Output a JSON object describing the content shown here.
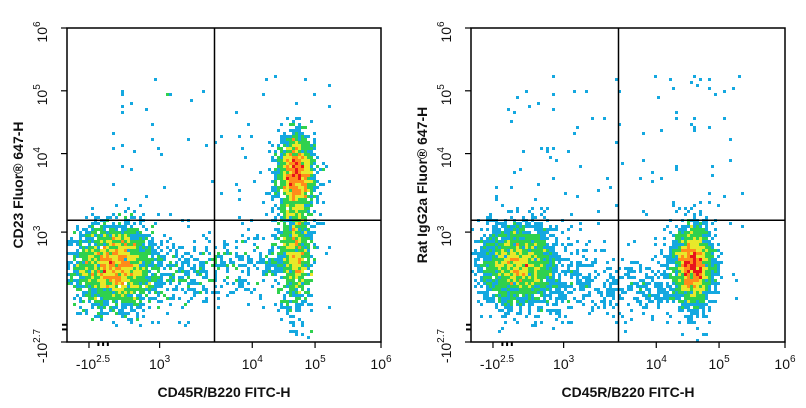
{
  "chart_data": [
    {
      "type": "scatter",
      "subtype": "flow-cytometry-density-dot-plot",
      "xlabel": "CD45R/B220 FITC-H",
      "ylabel": "CD23 Fluor® 647-H",
      "x_axis": {
        "scale": "biexponential",
        "ticks": [
          {
            "base": "-10",
            "exp": "2.5"
          },
          {
            "base": "10",
            "exp": "3"
          },
          {
            "base": "10",
            "exp": "4"
          },
          {
            "base": "10",
            "exp": "5"
          },
          {
            "base": "10",
            "exp": "6"
          }
        ]
      },
      "y_axis": {
        "scale": "biexponential",
        "ticks": [
          {
            "base": "-10",
            "exp": "2.7"
          },
          {
            "base": "10",
            "exp": "3"
          },
          {
            "base": "10",
            "exp": "4"
          },
          {
            "base": "10",
            "exp": "5"
          },
          {
            "base": "10",
            "exp": "6"
          }
        ]
      },
      "gate": {
        "x_threshold": 5000,
        "y_threshold": 1500
      },
      "populations": [
        {
          "name": "CD45R/B220- CD23- cluster",
          "x_center": 160,
          "y_center": 550,
          "relative_density": 1.0
        },
        {
          "name": "CD45R/B220+ CD23+ cluster",
          "x_center": 55000,
          "y_center": 7000,
          "relative_density": 0.9
        },
        {
          "name": "CD45R/B220+ CD23 low tail",
          "x_center": 55000,
          "y_center": 700,
          "relative_density": 0.5
        }
      ],
      "density_colors": [
        "#1b1bd6",
        "#14a8e0",
        "#2fd14e",
        "#e8e82a",
        "#ff8c1a",
        "#e8141c"
      ]
    },
    {
      "type": "scatter",
      "subtype": "flow-cytometry-density-dot-plot",
      "xlabel": "CD45R/B220 FITC-H",
      "ylabel": "Rat IgG2a Fluor® 647-H",
      "x_axis": {
        "scale": "biexponential",
        "ticks": [
          {
            "base": "-10",
            "exp": "2.5"
          },
          {
            "base": "10",
            "exp": "3"
          },
          {
            "base": "10",
            "exp": "4"
          },
          {
            "base": "10",
            "exp": "5"
          },
          {
            "base": "10",
            "exp": "6"
          }
        ]
      },
      "y_axis": {
        "scale": "biexponential",
        "ticks": [
          {
            "base": "-10",
            "exp": "2.7"
          },
          {
            "base": "10",
            "exp": "3"
          },
          {
            "base": "10",
            "exp": "4"
          },
          {
            "base": "10",
            "exp": "5"
          },
          {
            "base": "10",
            "exp": "6"
          }
        ]
      },
      "gate": {
        "x_threshold": 5000,
        "y_threshold": 1500
      },
      "populations": [
        {
          "name": "CD45R/B220- isotype cluster",
          "x_center": 160,
          "y_center": 550,
          "relative_density": 1.0
        },
        {
          "name": "CD45R/B220+ isotype cluster",
          "x_center": 45000,
          "y_center": 550,
          "relative_density": 0.95
        }
      ],
      "density_colors": [
        "#1b1bd6",
        "#14a8e0",
        "#2fd14e",
        "#e8e82a",
        "#ff8c1a",
        "#e8141c"
      ]
    }
  ]
}
